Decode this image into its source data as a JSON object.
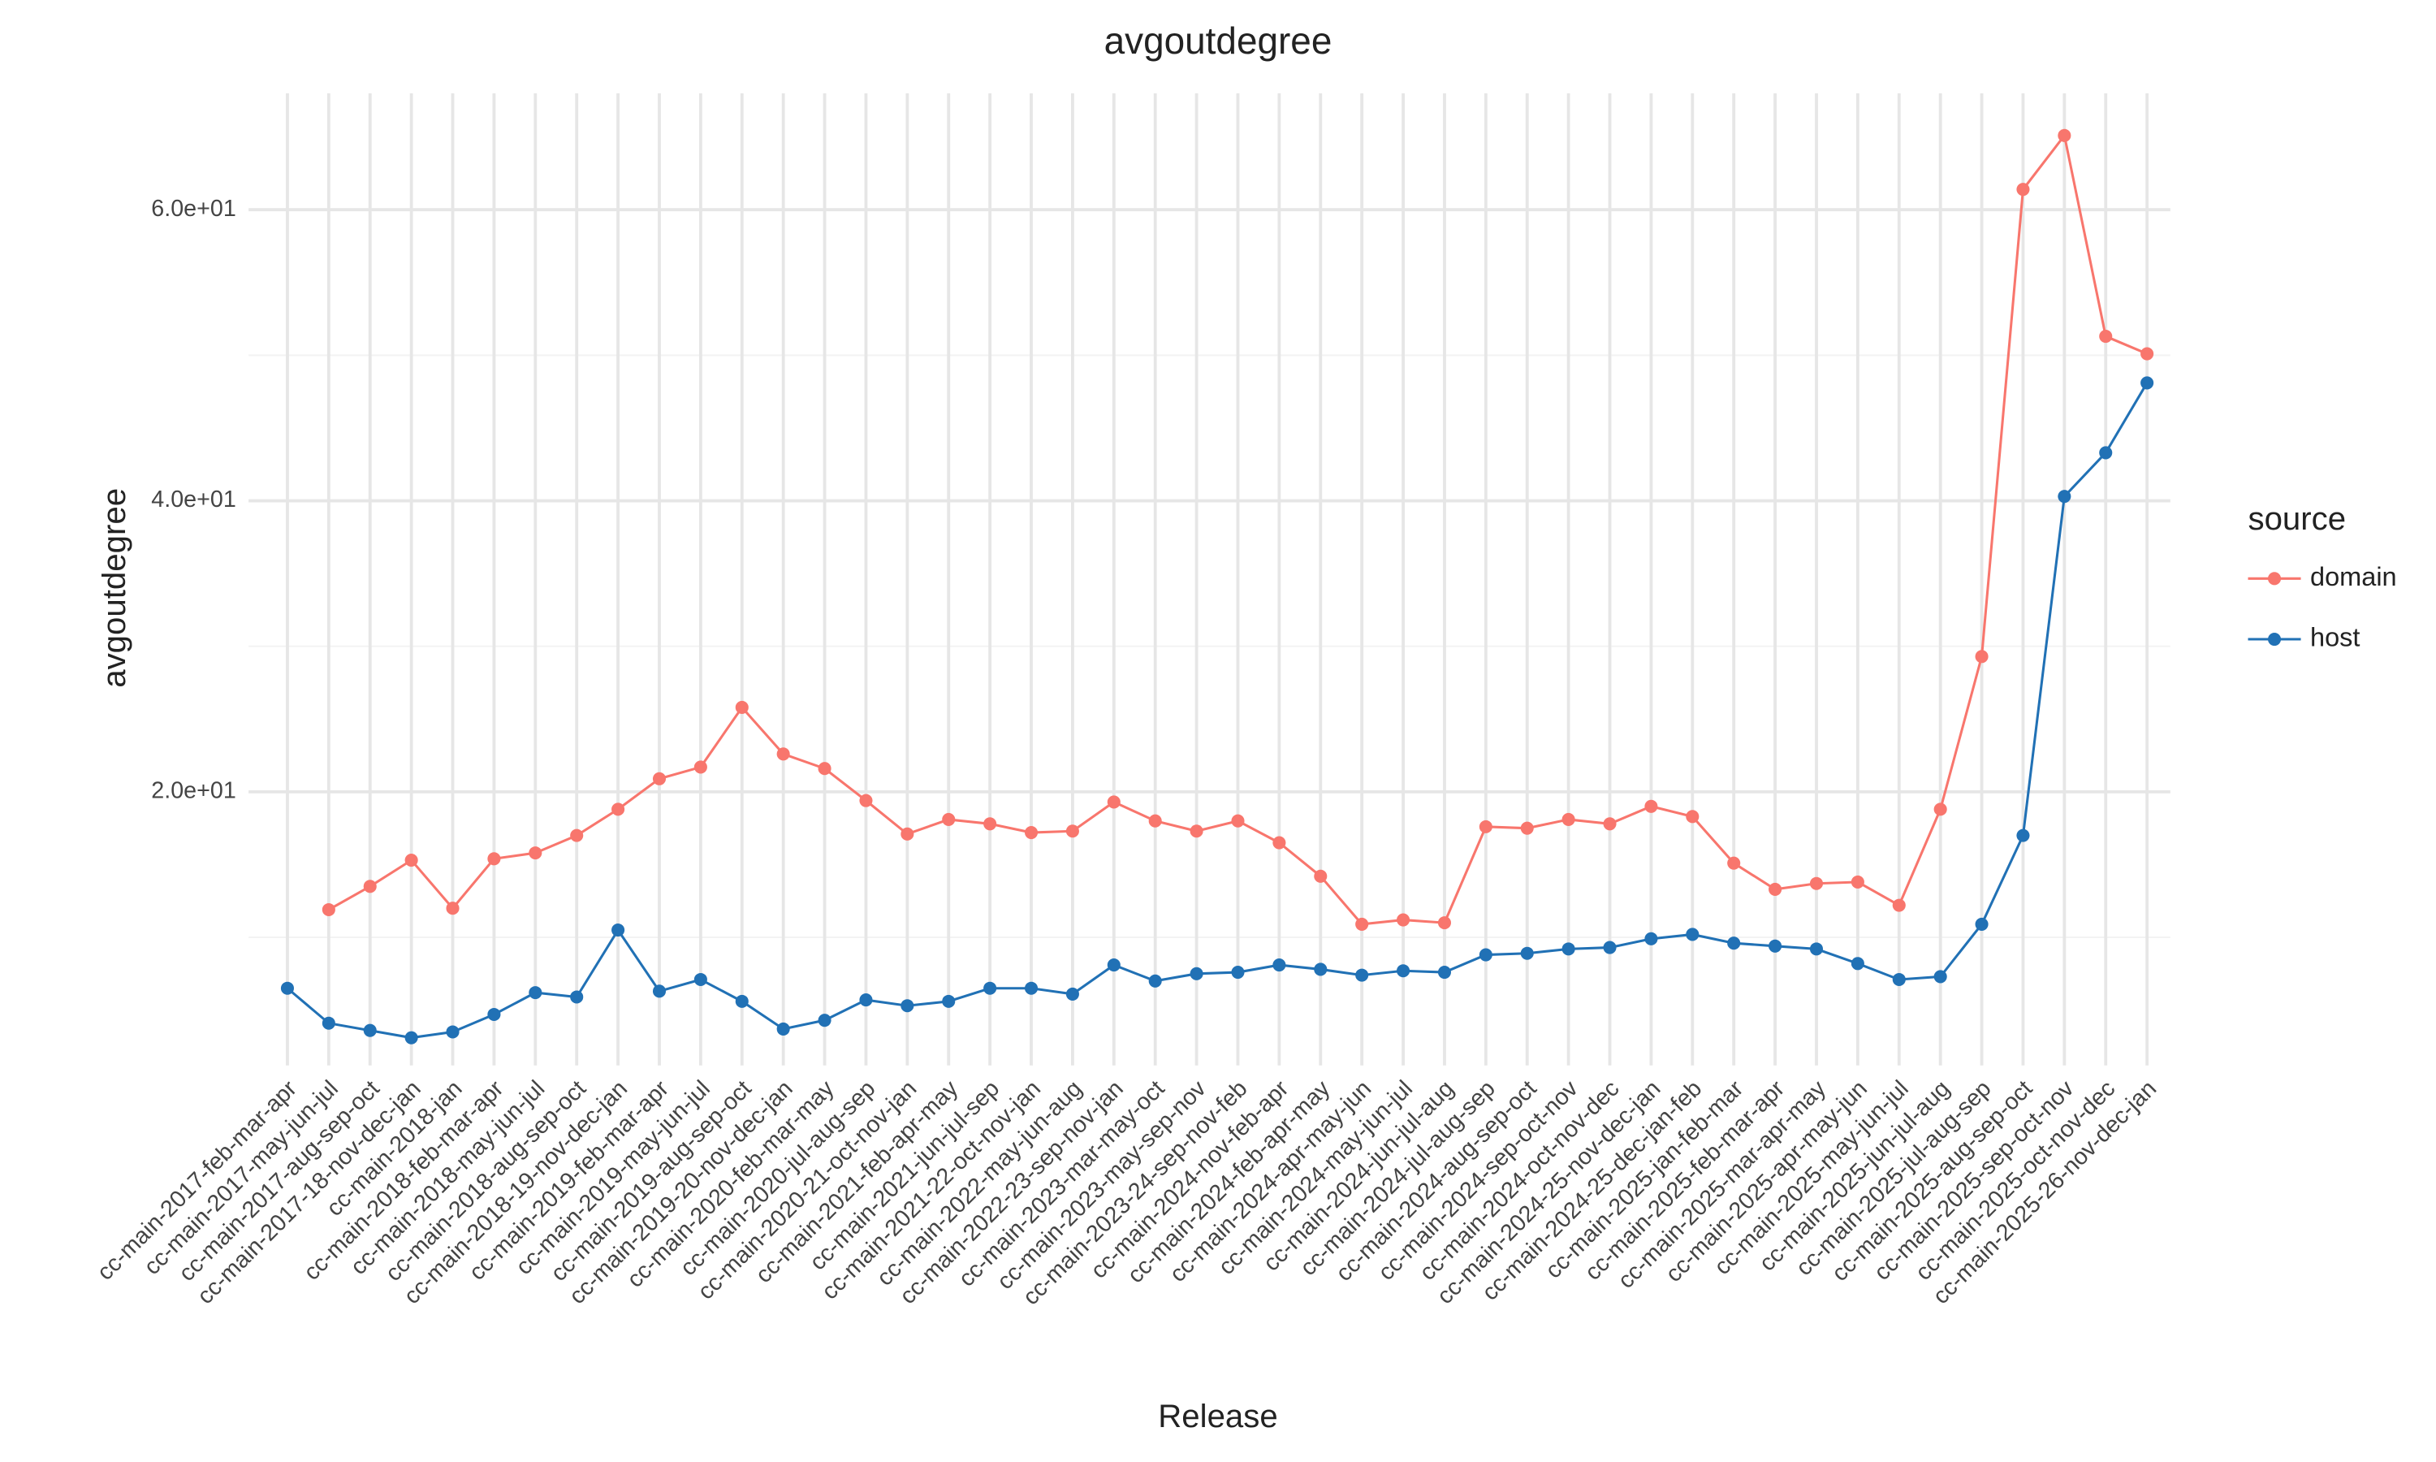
{
  "chart_data": {
    "type": "line",
    "title": "avgoutdegree",
    "x_label": "Release",
    "y_label": "avgoutdegree",
    "legend_title": "source",
    "legend_position": "right",
    "grid": true,
    "categories": [
      "cc-main-2017-feb-mar-apr",
      "cc-main-2017-may-jun-jul",
      "cc-main-2017-aug-sep-oct",
      "cc-main-2017-18-nov-dec-jan",
      "cc-main-2018-jan",
      "cc-main-2018-feb-mar-apr",
      "cc-main-2018-may-jun-jul",
      "cc-main-2018-aug-sep-oct",
      "cc-main-2018-19-nov-dec-jan",
      "cc-main-2019-feb-mar-apr",
      "cc-main-2019-may-jun-jul",
      "cc-main-2019-aug-sep-oct",
      "cc-main-2019-20-nov-dec-jan",
      "cc-main-2020-feb-mar-may",
      "cc-main-2020-jul-aug-sep",
      "cc-main-2020-21-oct-nov-jan",
      "cc-main-2021-feb-apr-may",
      "cc-main-2021-jun-jul-sep",
      "cc-main-2021-22-oct-nov-jan",
      "cc-main-2022-may-jun-aug",
      "cc-main-2022-23-sep-nov-jan",
      "cc-main-2023-mar-may-oct",
      "cc-main-2023-may-sep-nov",
      "cc-main-2023-24-sep-nov-feb",
      "cc-main-2024-nov-feb-apr",
      "cc-main-2024-feb-apr-may",
      "cc-main-2024-apr-may-jun",
      "cc-main-2024-may-jun-jul",
      "cc-main-2024-jun-jul-aug",
      "cc-main-2024-jul-aug-sep",
      "cc-main-2024-aug-sep-oct",
      "cc-main-2024-sep-oct-nov",
      "cc-main-2024-oct-nov-dec",
      "cc-main-2024-25-nov-dec-jan",
      "cc-main-2024-25-dec-jan-feb",
      "cc-main-2025-jan-feb-mar",
      "cc-main-2025-feb-mar-apr",
      "cc-main-2025-mar-apr-may",
      "cc-main-2025-apr-may-jun",
      "cc-main-2025-may-jun-jul",
      "cc-main-2025-jun-jul-aug",
      "cc-main-2025-jul-aug-sep",
      "cc-main-2025-aug-sep-oct",
      "cc-main-2025-sep-oct-nov",
      "cc-main-2025-oct-nov-dec",
      "cc-main-2025-26-nov-dec-jan"
    ],
    "series": [
      {
        "name": "domain",
        "color": "#f8766d",
        "values": [
          null,
          11.9,
          13.5,
          15.3,
          12.0,
          15.4,
          15.8,
          17.0,
          18.8,
          20.9,
          21.7,
          25.8,
          22.6,
          21.6,
          19.4,
          17.1,
          18.1,
          17.8,
          17.2,
          17.3,
          19.3,
          18.0,
          17.3,
          18.0,
          16.5,
          14.2,
          10.9,
          11.2,
          11.0,
          17.6,
          17.5,
          18.1,
          17.8,
          19.0,
          18.3,
          15.1,
          13.3,
          13.7,
          13.8,
          12.2,
          18.8,
          29.3,
          61.4,
          65.1,
          51.3,
          50.1
        ]
      },
      {
        "name": "host",
        "color": "#2171b5",
        "values": [
          6.5,
          4.1,
          3.6,
          3.1,
          3.5,
          4.7,
          6.2,
          5.9,
          10.5,
          6.3,
          7.1,
          5.6,
          3.7,
          4.3,
          5.7,
          5.3,
          5.6,
          6.5,
          6.5,
          6.1,
          8.1,
          7.0,
          7.5,
          7.6,
          8.1,
          7.8,
          7.4,
          7.7,
          7.6,
          8.8,
          8.9,
          9.2,
          9.3,
          9.9,
          10.2,
          9.6,
          9.4,
          9.2,
          8.2,
          7.1,
          7.3,
          10.9,
          17.0,
          40.3,
          43.3,
          48.1
        ]
      }
    ],
    "ylim": [
      1.2,
      68
    ],
    "yticks": [
      {
        "value": 20,
        "label": "2.0e+01"
      },
      {
        "value": 40,
        "label": "4.0e+01"
      },
      {
        "value": 60,
        "label": "6.0e+01"
      }
    ],
    "minor_yticks": [
      10,
      30,
      50
    ]
  }
}
